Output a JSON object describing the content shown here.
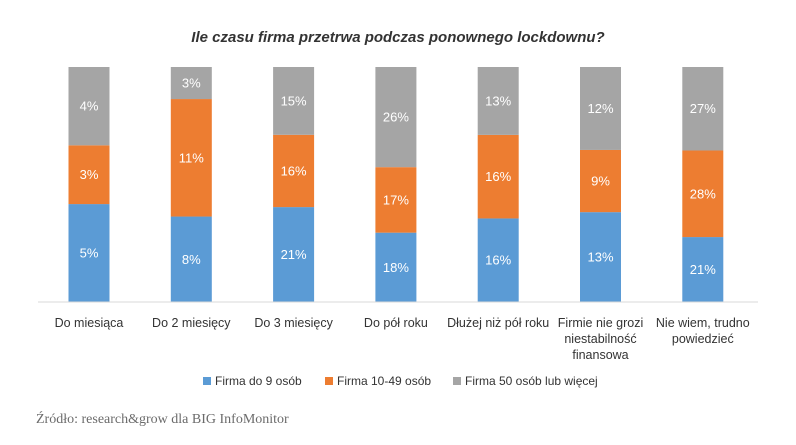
{
  "chart_data": {
    "type": "bar",
    "stacked": true,
    "title": "Ile czasu firma przetrwa podczas ponownego lockdownu?",
    "categories": [
      [
        "Do miesiąca"
      ],
      [
        "Do 2 miesięcy"
      ],
      [
        "Do 3 miesięcy"
      ],
      [
        "Do pół roku"
      ],
      [
        "Dłużej niż pół roku"
      ],
      [
        "Firmie nie grozi",
        "niestabilność",
        "finansowa"
      ],
      [
        "Nie wiem, trudno",
        "powiedzieć"
      ]
    ],
    "series": [
      {
        "name": "Firma do 9 osób",
        "color": "#5b9bd5",
        "values": [
          5,
          8,
          21,
          18,
          16,
          13,
          21
        ],
        "labels": [
          "5%",
          "8%",
          "21%",
          "18%",
          "16%",
          "13%",
          "21%"
        ]
      },
      {
        "name": "Firma 10-49 osób",
        "color": "#ed7d31",
        "values": [
          3,
          11,
          16,
          17,
          16,
          9,
          28
        ],
        "labels": [
          "3%",
          "11%",
          "16%",
          "17%",
          "16%",
          "9%",
          "28%"
        ]
      },
      {
        "name": "Firma 50 osób lub więcej",
        "color": "#a5a5a5",
        "values": [
          4,
          3,
          15,
          26,
          13,
          12,
          27
        ],
        "labels": [
          "4%",
          "3%",
          "15%",
          "26%",
          "13%",
          "12%",
          "27%"
        ]
      }
    ],
    "normalized": true,
    "legend_position": "bottom",
    "grid": false
  },
  "source": "Źródło: research&grow dla BIG InfoMonitor"
}
